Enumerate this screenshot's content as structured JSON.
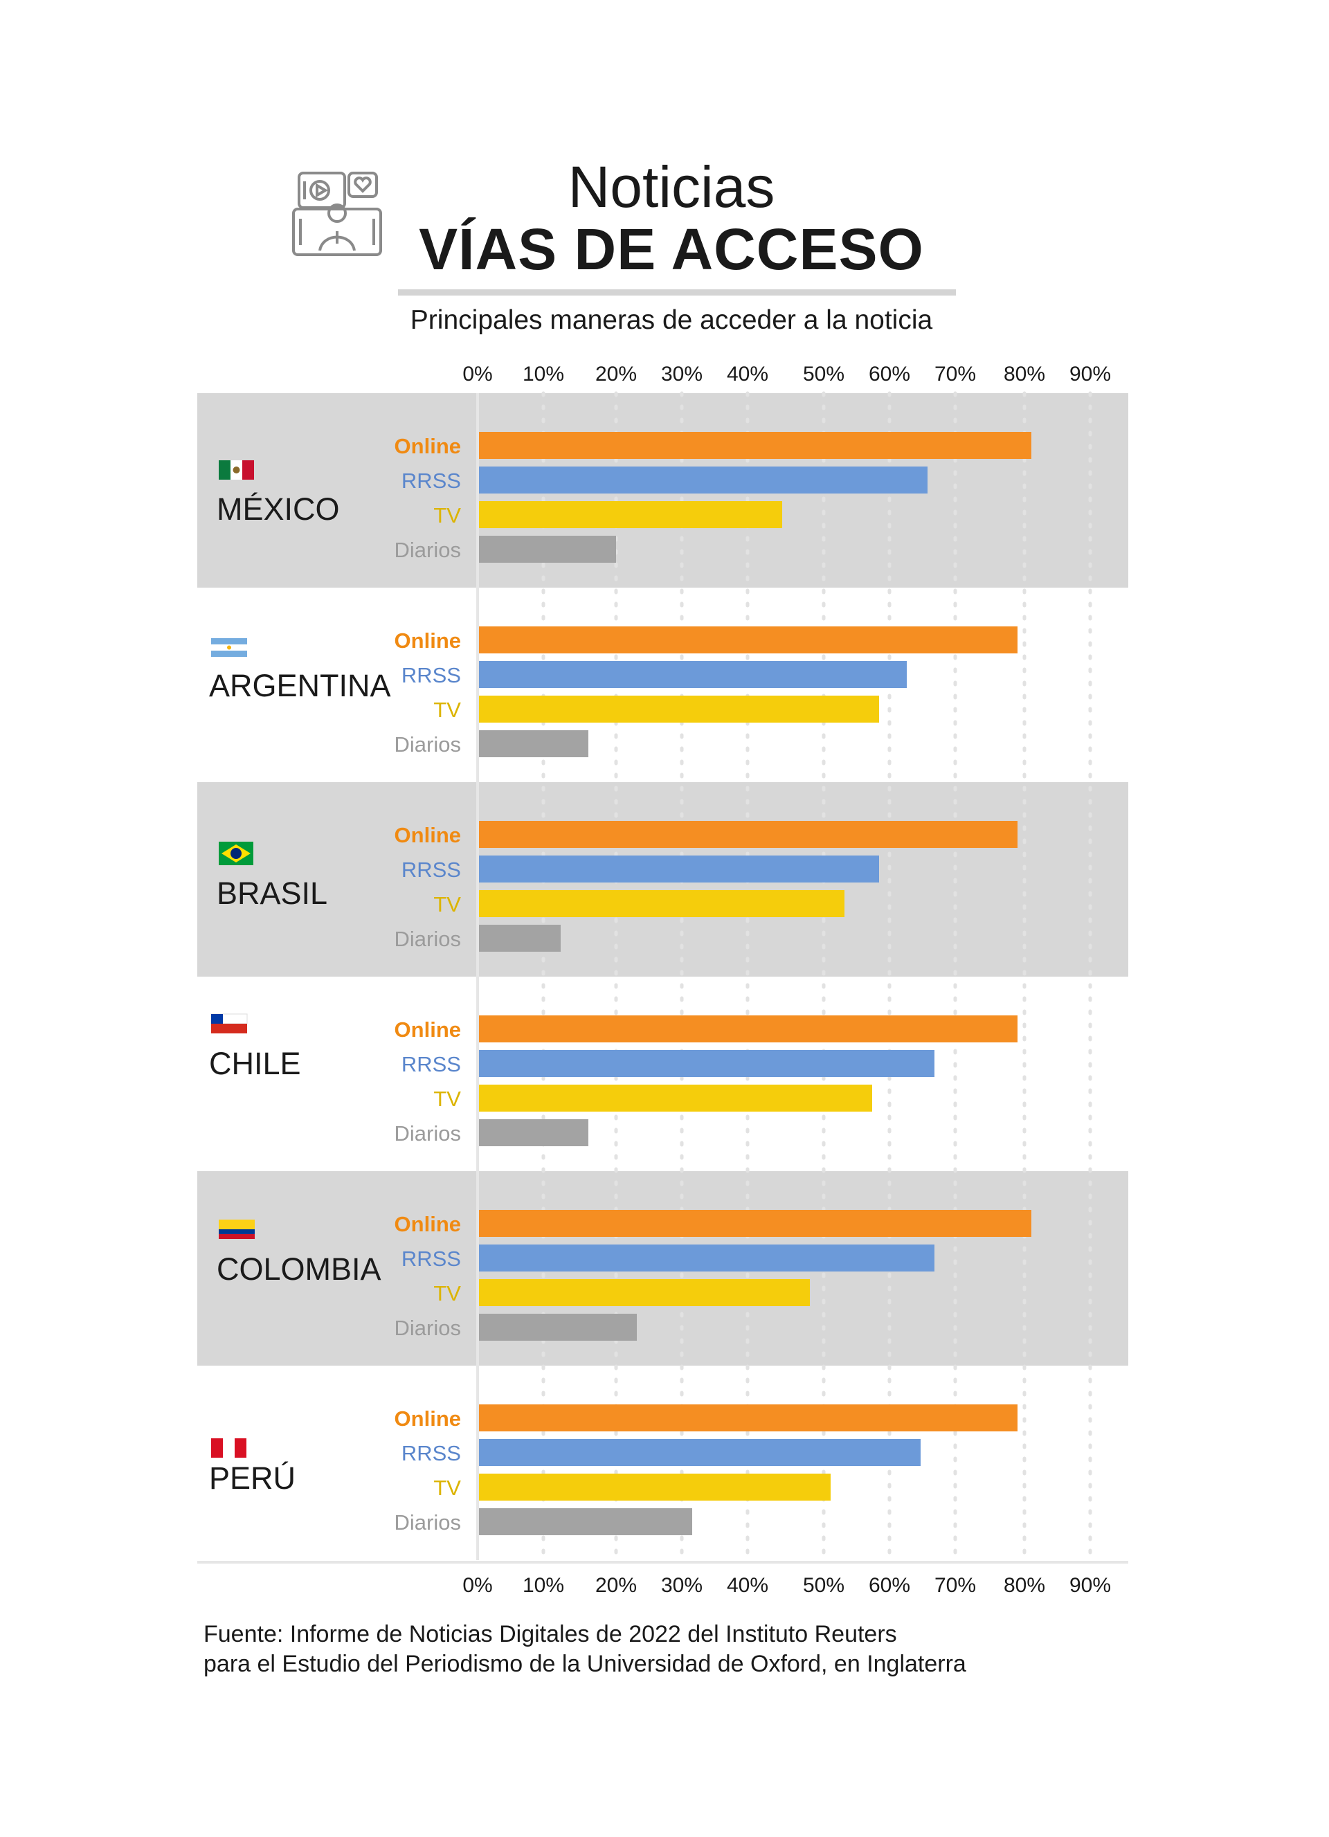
{
  "header": {
    "title_line1": "Noticias",
    "title_line2": "VÍAS DE ACCESO",
    "subtitle": "Principales maneras de acceder a la noticia",
    "icon": "news-media-icon"
  },
  "source": {
    "line1": "Fuente: Informe de Noticias Digitales de 2022 del Instituto Reuters",
    "line2": "para el Estudio del Periodismo de la Universidad de Oxford, en Inglaterra"
  },
  "chart_data": {
    "type": "bar",
    "orientation": "horizontal",
    "xlim": [
      0,
      90
    ],
    "ticks": [
      "0%",
      "10%",
      "20%",
      "30%",
      "40%",
      "50%",
      "60%",
      "70%",
      "80%",
      "90%"
    ],
    "grid": true,
    "series_names": [
      "Online",
      "RRSS",
      "TV",
      "Diarios"
    ],
    "colors": {
      "Online": "#f58e22",
      "RRSS": "#6c9ad9",
      "TV": "#f5cd0c",
      "Diarios": "#a3a3a3",
      "online_label": "#f08a12",
      "rrss_label": "#5a86cc",
      "tv_label": "#dcb400",
      "diarios_label": "#9b9b9b",
      "band": "#d7d7d7"
    },
    "groups": [
      {
        "country": "MÉXICO",
        "flag": "mexico-flag-icon",
        "values": [
          80,
          65,
          44,
          20
        ]
      },
      {
        "country": "ARGENTINA",
        "flag": "argentina-flag-icon",
        "values": [
          78,
          62,
          58,
          16
        ]
      },
      {
        "country": "BRASIL",
        "flag": "brazil-flag-icon",
        "values": [
          78,
          58,
          53,
          12
        ]
      },
      {
        "country": "CHILE",
        "flag": "chile-flag-icon",
        "values": [
          78,
          66,
          57,
          16
        ]
      },
      {
        "country": "COLOMBIA",
        "flag": "colombia-flag-icon",
        "values": [
          80,
          66,
          48,
          23
        ]
      },
      {
        "country": "PERÚ",
        "flag": "peru-flag-icon",
        "values": [
          78,
          64,
          51,
          31
        ]
      }
    ]
  }
}
